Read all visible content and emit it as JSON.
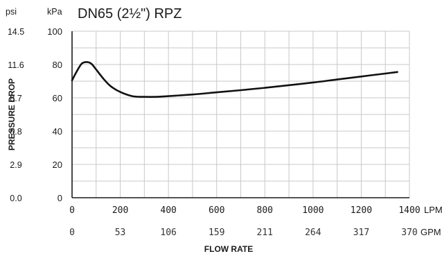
{
  "chart_data": {
    "type": "line",
    "title": "DN65 (2½\") RPZ",
    "ylabel": "PRESSURE DROP",
    "xlabel": "FLOW RATE",
    "y_unit_primary": "kPa",
    "y_unit_secondary": "psi",
    "x_unit_primary": "LPM",
    "x_unit_secondary": "GPM",
    "xlim": [
      0,
      1400
    ],
    "ylim": [
      0,
      100
    ],
    "grid": true,
    "y_ticks": [
      0,
      20,
      40,
      60,
      80,
      100
    ],
    "y_ticks_secondary": [
      "0.0",
      "2.9",
      "5.8",
      "8.7",
      "11.6",
      "14.5"
    ],
    "x_ticks": [
      0,
      200,
      400,
      600,
      800,
      1000,
      1200,
      1400
    ],
    "x_ticks_secondary": [
      "0",
      "53",
      "106",
      "159",
      "211",
      "264",
      "317",
      "370"
    ],
    "series": [
      {
        "x": [
          0,
          20,
          40,
          60,
          80,
          100,
          130,
          160,
          200,
          250,
          300,
          350,
          400,
          500,
          600,
          700,
          800,
          900,
          1000,
          1100,
          1200,
          1300,
          1350
        ],
        "y": [
          70.5,
          76,
          80.5,
          81.5,
          80.5,
          77,
          71.5,
          67,
          63.5,
          61,
          60.6,
          60.6,
          61,
          62,
          63.3,
          64.6,
          66,
          67.6,
          69.2,
          71,
          72.8,
          74.6,
          75.5
        ]
      }
    ]
  }
}
